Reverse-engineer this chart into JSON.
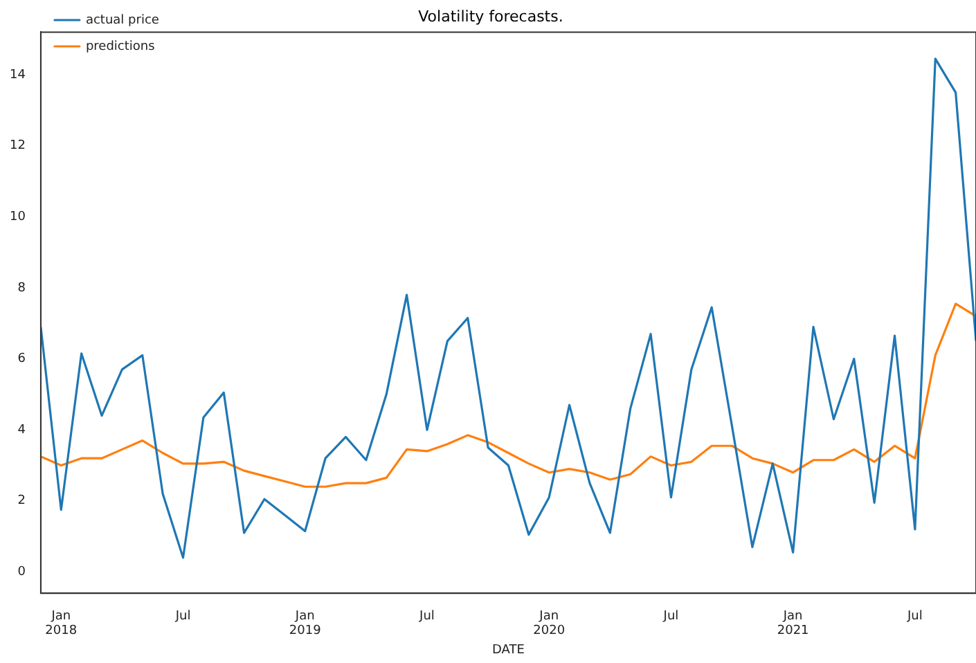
{
  "chart_data": {
    "type": "line",
    "title": "Volatility forecasts.",
    "xlabel": "DATE",
    "x": [
      "2017-12",
      "2018-01",
      "2018-02",
      "2018-03",
      "2018-04",
      "2018-05",
      "2018-06",
      "2018-07",
      "2018-08",
      "2018-09",
      "2018-10",
      "2018-11",
      "2018-12",
      "2019-01",
      "2019-02",
      "2019-03",
      "2019-04",
      "2019-05",
      "2019-06",
      "2019-07",
      "2019-08",
      "2019-09",
      "2019-10",
      "2019-11",
      "2019-12",
      "2020-01",
      "2020-02",
      "2020-03",
      "2020-04",
      "2020-05",
      "2020-06",
      "2020-07",
      "2020-08",
      "2020-09",
      "2020-10",
      "2020-11",
      "2020-12",
      "2021-01",
      "2021-02",
      "2021-03",
      "2021-04",
      "2021-05",
      "2021-06",
      "2021-07",
      "2021-08",
      "2021-09",
      "2021-10"
    ],
    "series": [
      {
        "name": "actual price",
        "color": "#1f77b4",
        "values": [
          6.9,
          1.75,
          6.15,
          4.4,
          5.7,
          6.1,
          2.2,
          0.4,
          4.35,
          5.05,
          1.1,
          2.05,
          1.6,
          1.15,
          3.2,
          3.8,
          3.15,
          5.0,
          7.8,
          4.0,
          6.5,
          7.15,
          3.5,
          3.0,
          1.05,
          2.1,
          4.7,
          2.5,
          1.1,
          4.6,
          6.7,
          2.1,
          5.7,
          7.45,
          4.1,
          0.7,
          3.05,
          0.55,
          6.9,
          4.3,
          6.0,
          1.95,
          6.65,
          1.2,
          14.45,
          13.5,
          6.5
        ]
      },
      {
        "name": "predictions",
        "color": "#ff7f0e",
        "values": [
          3.25,
          3.0,
          3.2,
          3.2,
          3.45,
          3.7,
          3.35,
          3.05,
          3.05,
          3.1,
          2.85,
          2.7,
          2.55,
          2.4,
          2.4,
          2.5,
          2.5,
          2.65,
          3.45,
          3.4,
          3.6,
          3.85,
          3.65,
          3.35,
          3.05,
          2.8,
          2.9,
          2.8,
          2.6,
          2.75,
          3.25,
          3.0,
          3.1,
          3.55,
          3.55,
          3.2,
          3.05,
          2.8,
          3.15,
          3.15,
          3.45,
          3.1,
          3.55,
          3.2,
          6.1,
          7.55,
          7.2
        ]
      }
    ],
    "xlim": [
      "2017-12",
      "2021-10"
    ],
    "xticks": [
      {
        "value": "2018-01",
        "label": "Jan\n2018"
      },
      {
        "value": "2018-07",
        "label": "Jul"
      },
      {
        "value": "2019-01",
        "label": "Jan\n2019"
      },
      {
        "value": "2019-07",
        "label": "Jul"
      },
      {
        "value": "2020-01",
        "label": "Jan\n2020"
      },
      {
        "value": "2020-07",
        "label": "Jul"
      },
      {
        "value": "2021-01",
        "label": "Jan\n2021"
      },
      {
        "value": "2021-07",
        "label": "Jul"
      }
    ],
    "ylim": [
      -0.6,
      15.2
    ],
    "yticks": [
      0,
      2,
      4,
      6,
      8,
      10,
      12,
      14
    ],
    "grid": false,
    "legend": "top left",
    "marker": "none",
    "line_style": "solid"
  }
}
